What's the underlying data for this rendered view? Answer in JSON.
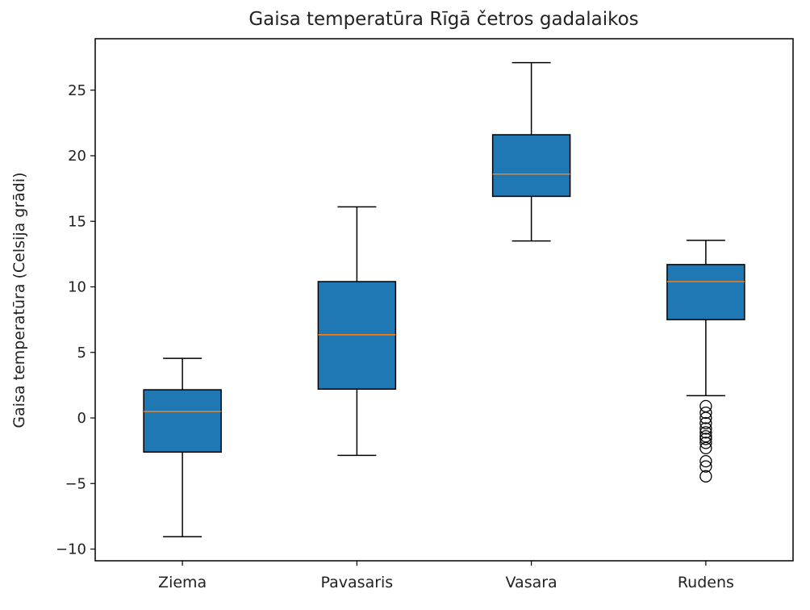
{
  "chart_data": {
    "type": "box",
    "title": "Gaisa temperatūra Rīgā četros gadalaikos",
    "xlabel": "",
    "ylabel": "Gaisa temperatūra (Celsija grādi)",
    "ylim": [
      -11,
      28.8
    ],
    "yticks": [
      -10,
      -5,
      0,
      5,
      10,
      15,
      20,
      25
    ],
    "categories": [
      "Ziema",
      "Pavasaris",
      "Vasara",
      "Rudens"
    ],
    "boxes": [
      {
        "whisker_low": -9.05,
        "q1": -2.6,
        "median": 0.5,
        "q3": 2.15,
        "whisker_high": 4.55,
        "outliers": []
      },
      {
        "whisker_low": -2.85,
        "q1": 2.2,
        "median": 6.35,
        "q3": 10.4,
        "whisker_high": 16.1,
        "outliers": []
      },
      {
        "whisker_low": 13.5,
        "q1": 16.9,
        "median": 18.6,
        "q3": 21.6,
        "whisker_high": 27.1,
        "outliers": []
      },
      {
        "whisker_low": 1.7,
        "q1": 7.5,
        "median": 10.4,
        "q3": 11.7,
        "whisker_high": 13.55,
        "outliers": [
          0.9,
          0.4,
          0.0,
          -0.4,
          -0.8,
          -1.1,
          -1.4,
          -1.6,
          -1.9,
          -2.3,
          -3.3,
          -3.7,
          -4.45
        ]
      }
    ],
    "grid": false,
    "colors": {
      "box_fill": "#1f77b4",
      "median": "#ff7f0e",
      "line": "#000000"
    }
  }
}
